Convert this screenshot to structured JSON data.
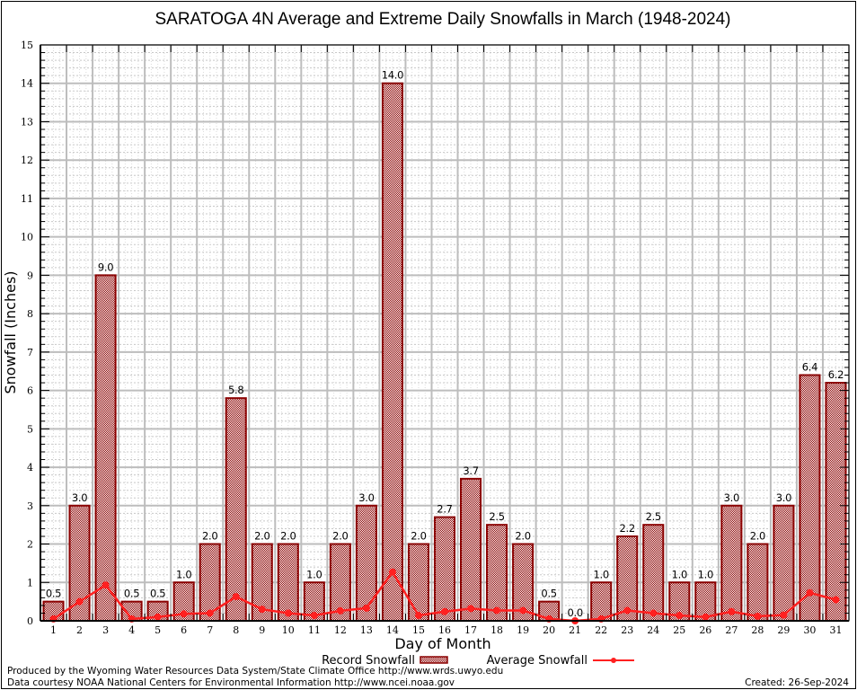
{
  "chart_data": {
    "type": "bar",
    "title": "SARATOGA 4N Average and Extreme Daily Snowfalls in March (1948-2024)",
    "xlabel": "Day of Month",
    "ylabel": "Snowfall (Inches)",
    "ylim": [
      0,
      15
    ],
    "yticks": [
      0,
      1,
      2,
      3,
      4,
      5,
      6,
      7,
      8,
      9,
      10,
      11,
      12,
      13,
      14,
      15
    ],
    "grid": true,
    "categories": [
      "1",
      "2",
      "3",
      "4",
      "5",
      "6",
      "7",
      "8",
      "9",
      "10",
      "11",
      "12",
      "13",
      "14",
      "15",
      "16",
      "17",
      "18",
      "19",
      "20",
      "21",
      "22",
      "23",
      "24",
      "25",
      "26",
      "27",
      "28",
      "29",
      "30",
      "31"
    ],
    "series": [
      {
        "name": "Record Snowfall",
        "type": "bar",
        "color": "#8b0000",
        "values": [
          0.5,
          3.0,
          9.0,
          0.5,
          0.5,
          1.0,
          2.0,
          5.8,
          2.0,
          2.0,
          1.0,
          2.0,
          3.0,
          14.0,
          2.0,
          2.7,
          3.7,
          2.5,
          2.0,
          0.5,
          0.0,
          1.0,
          2.2,
          2.5,
          1.0,
          1.0,
          3.0,
          2.0,
          3.0,
          6.4,
          6.2
        ],
        "labels": [
          "0.5",
          "3.0",
          "9.0",
          "0.5",
          "0.5",
          "1.0",
          "2.0",
          "5.8",
          "2.0",
          "2.0",
          "1.0",
          "2.0",
          "3.0",
          "14.0",
          "2.0",
          "2.7",
          "3.7",
          "2.5",
          "2.0",
          "0.5",
          "0.0",
          "1.0",
          "2.2",
          "2.5",
          "1.0",
          "1.0",
          "3.0",
          "2.0",
          "3.0",
          "6.4",
          "6.2"
        ]
      },
      {
        "name": "Average Snowfall",
        "type": "line",
        "color": "#ff2020",
        "values": [
          0.05,
          0.5,
          0.93,
          0.05,
          0.1,
          0.18,
          0.2,
          0.63,
          0.3,
          0.2,
          0.14,
          0.26,
          0.33,
          1.27,
          0.14,
          0.24,
          0.32,
          0.27,
          0.27,
          0.05,
          0.0,
          0.05,
          0.27,
          0.2,
          0.14,
          0.1,
          0.24,
          0.12,
          0.15,
          0.73,
          0.55
        ]
      }
    ],
    "legend": {
      "placement": "bottom-center",
      "entries": [
        "Record Snowfall",
        "Average Snowfall"
      ]
    }
  },
  "footer": {
    "producer": "Produced by the Wyoming Water Resources Data System/State Climate Office http://www.wrds.uwyo.edu",
    "source": "Data courtesy NOAA National Centers for Environmental Information http://www.ncei.noaa.gov",
    "created": "Created:  26-Sep-2024"
  }
}
